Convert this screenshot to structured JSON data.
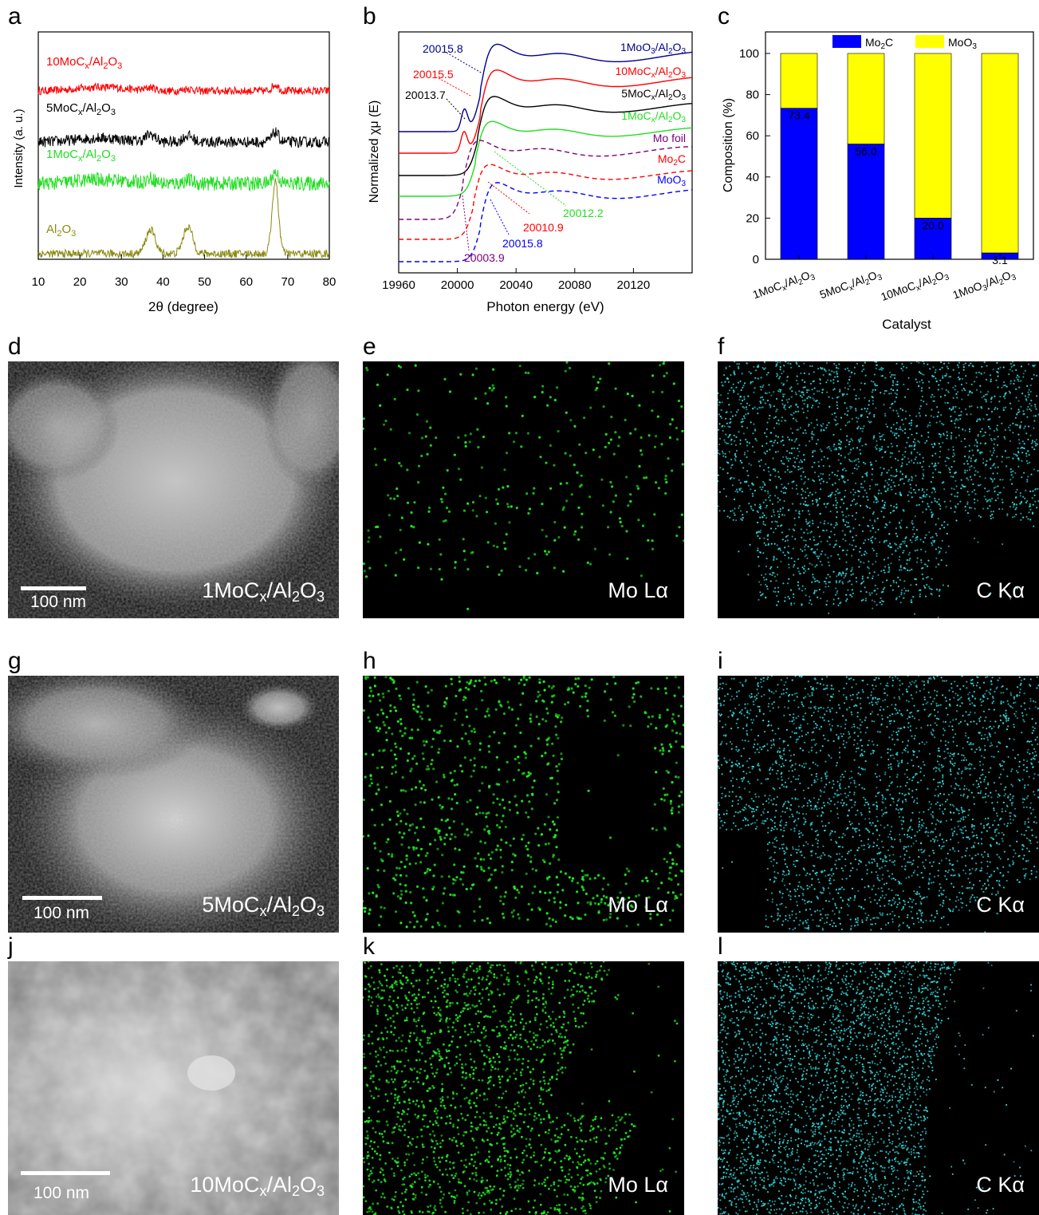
{
  "panel_letters": [
    "a",
    "b",
    "c",
    "d",
    "e",
    "f",
    "g",
    "h",
    "i",
    "j",
    "k",
    "l"
  ],
  "charts": {
    "a": {
      "xlabel": "2θ (degree)",
      "ylabel": "Intensity (a. u.)",
      "x_ticks": [
        "10",
        "20",
        "30",
        "40",
        "50",
        "60",
        "70",
        "80"
      ],
      "samples": [
        {
          "label_main": "10MoC",
          "label_sub1": "x",
          "label_mid": "/Al",
          "label_sub2": "2",
          "label_end": "O",
          "label_sub3": "3",
          "color": "#ff0000"
        },
        {
          "label_main": "5MoC",
          "label_sub1": "x",
          "label_mid": "/Al",
          "label_sub2": "2",
          "label_end": "O",
          "label_sub3": "3",
          "color": "#000000"
        },
        {
          "label_main": "1MoC",
          "label_sub1": "x",
          "label_mid": "/Al",
          "label_sub2": "2",
          "label_end": "O",
          "label_sub3": "3",
          "color": "#22dd22"
        },
        {
          "label_main": "Al",
          "label_sub1": "2",
          "label_mid": "O",
          "label_sub2": "3",
          "label_end": "",
          "label_sub3": "",
          "color": "#8b8b12"
        }
      ]
    },
    "b": {
      "xlabel": "Photon energy (eV)",
      "ylabel": "Normalized χμ (E)",
      "x_ticks": [
        "19960",
        "20000",
        "20040",
        "20080",
        "20120"
      ],
      "curves": [
        {
          "name": "1MoO3/Al2O3",
          "color": "#00008b"
        },
        {
          "name": "10MoCx/Al2O3",
          "color": "#ff0000"
        },
        {
          "name": "5MoCx/Al2O3",
          "color": "#000000"
        },
        {
          "name": "1MoCx/Al2O3",
          "color": "#22dd22"
        },
        {
          "name": "Mo foil",
          "color": "#800080"
        },
        {
          "name": "Mo2C",
          "color": "#ff0000"
        },
        {
          "name": "MoO3",
          "color": "#0000ff"
        }
      ],
      "edge_labels": [
        {
          "value": "20015.8",
          "color": "#00008b"
        },
        {
          "value": "20015.5",
          "color": "#ff0000"
        },
        {
          "value": "20013.7",
          "color": "#000000"
        },
        {
          "value": "20012.2",
          "color": "#22dd22"
        },
        {
          "value": "20010.9",
          "color": "#ff0000"
        },
        {
          "value": "20015.8",
          "color": "#0000ff"
        },
        {
          "value": "20003.9",
          "color": "#800080"
        }
      ],
      "legend_main": [
        "1MoO",
        "10MoC",
        "5MoC",
        "1MoC",
        "Mo foil",
        "Mo",
        "MoO"
      ]
    },
    "c": {
      "ylabel": "Composition (%)",
      "xlabel": "Catalyst",
      "y_ticks": [
        "0",
        "20",
        "40",
        "60",
        "80",
        "100"
      ],
      "legend": {
        "mo2c_main": "Mo",
        "mo2c_sub": "2",
        "mo2c_end": "C",
        "moo3_main": "MoO",
        "moo3_sub": "3"
      }
    }
  },
  "chart_data": [
    {
      "type": "bar",
      "title": "",
      "xlabel": "Catalyst",
      "ylabel": "Composition (%)",
      "ylim": [
        0,
        100
      ],
      "categories": [
        "1MoCx/Al2O3",
        "5MoCx/Al2O3",
        "10MoCx/Al2O3",
        "1MoO3/Al2O3"
      ],
      "stacked": true,
      "series": [
        {
          "name": "Mo2C",
          "color": "#0000ff",
          "values": [
            73.4,
            56.0,
            20.0,
            3.1
          ]
        },
        {
          "name": "MoO3",
          "color": "#ffff00",
          "values": [
            26.6,
            44.0,
            80.0,
            96.9
          ]
        }
      ],
      "data_labels": [
        "73.4",
        "56.0",
        "20.0",
        "3.1"
      ],
      "legend": "top"
    },
    {
      "type": "line",
      "xlabel": "2θ (degree)",
      "ylabel": "Intensity (a. u.)",
      "xlim": [
        10,
        80
      ],
      "series_names": [
        "10MoCx/Al2O3",
        "5MoCx/Al2O3",
        "1MoCx/Al2O3",
        "Al2O3"
      ],
      "peaks_deg": [
        37,
        46,
        67
      ]
    },
    {
      "type": "line",
      "xlabel": "Photon energy (eV)",
      "ylabel": "Normalized χμ (E)",
      "xlim": [
        19960,
        20160
      ],
      "series_names": [
        "1MoO3/Al2O3",
        "10MoCx/Al2O3",
        "5MoCx/Al2O3",
        "1MoCx/Al2O3",
        "Mo foil",
        "Mo2C",
        "MoO3"
      ],
      "edge_energies": [
        20015.8,
        20015.5,
        20013.7,
        20012.2,
        20003.9,
        20010.9,
        20015.8
      ]
    }
  ],
  "micrographs": [
    {
      "sample_main": "1MoC",
      "sample_x": "x",
      "sample_mid": "/Al",
      "sample_2": "2",
      "sample_o": "O",
      "sample_3": "3",
      "scale": "100 nm"
    },
    {
      "sample_main": "5MoC",
      "sample_x": "x",
      "sample_mid": "/Al",
      "sample_2": "2",
      "sample_o": "O",
      "sample_3": "3",
      "scale": "100 nm"
    },
    {
      "sample_main": "10MoC",
      "sample_x": "x",
      "sample_mid": "/Al",
      "sample_2": "2",
      "sample_o": "O",
      "sample_3": "3",
      "scale": "100 nm"
    }
  ],
  "maps": {
    "mo_label": "Mo Lα",
    "c_label": "C Kα",
    "mo_color": "#22ee22",
    "c_color": "#33dddd"
  }
}
